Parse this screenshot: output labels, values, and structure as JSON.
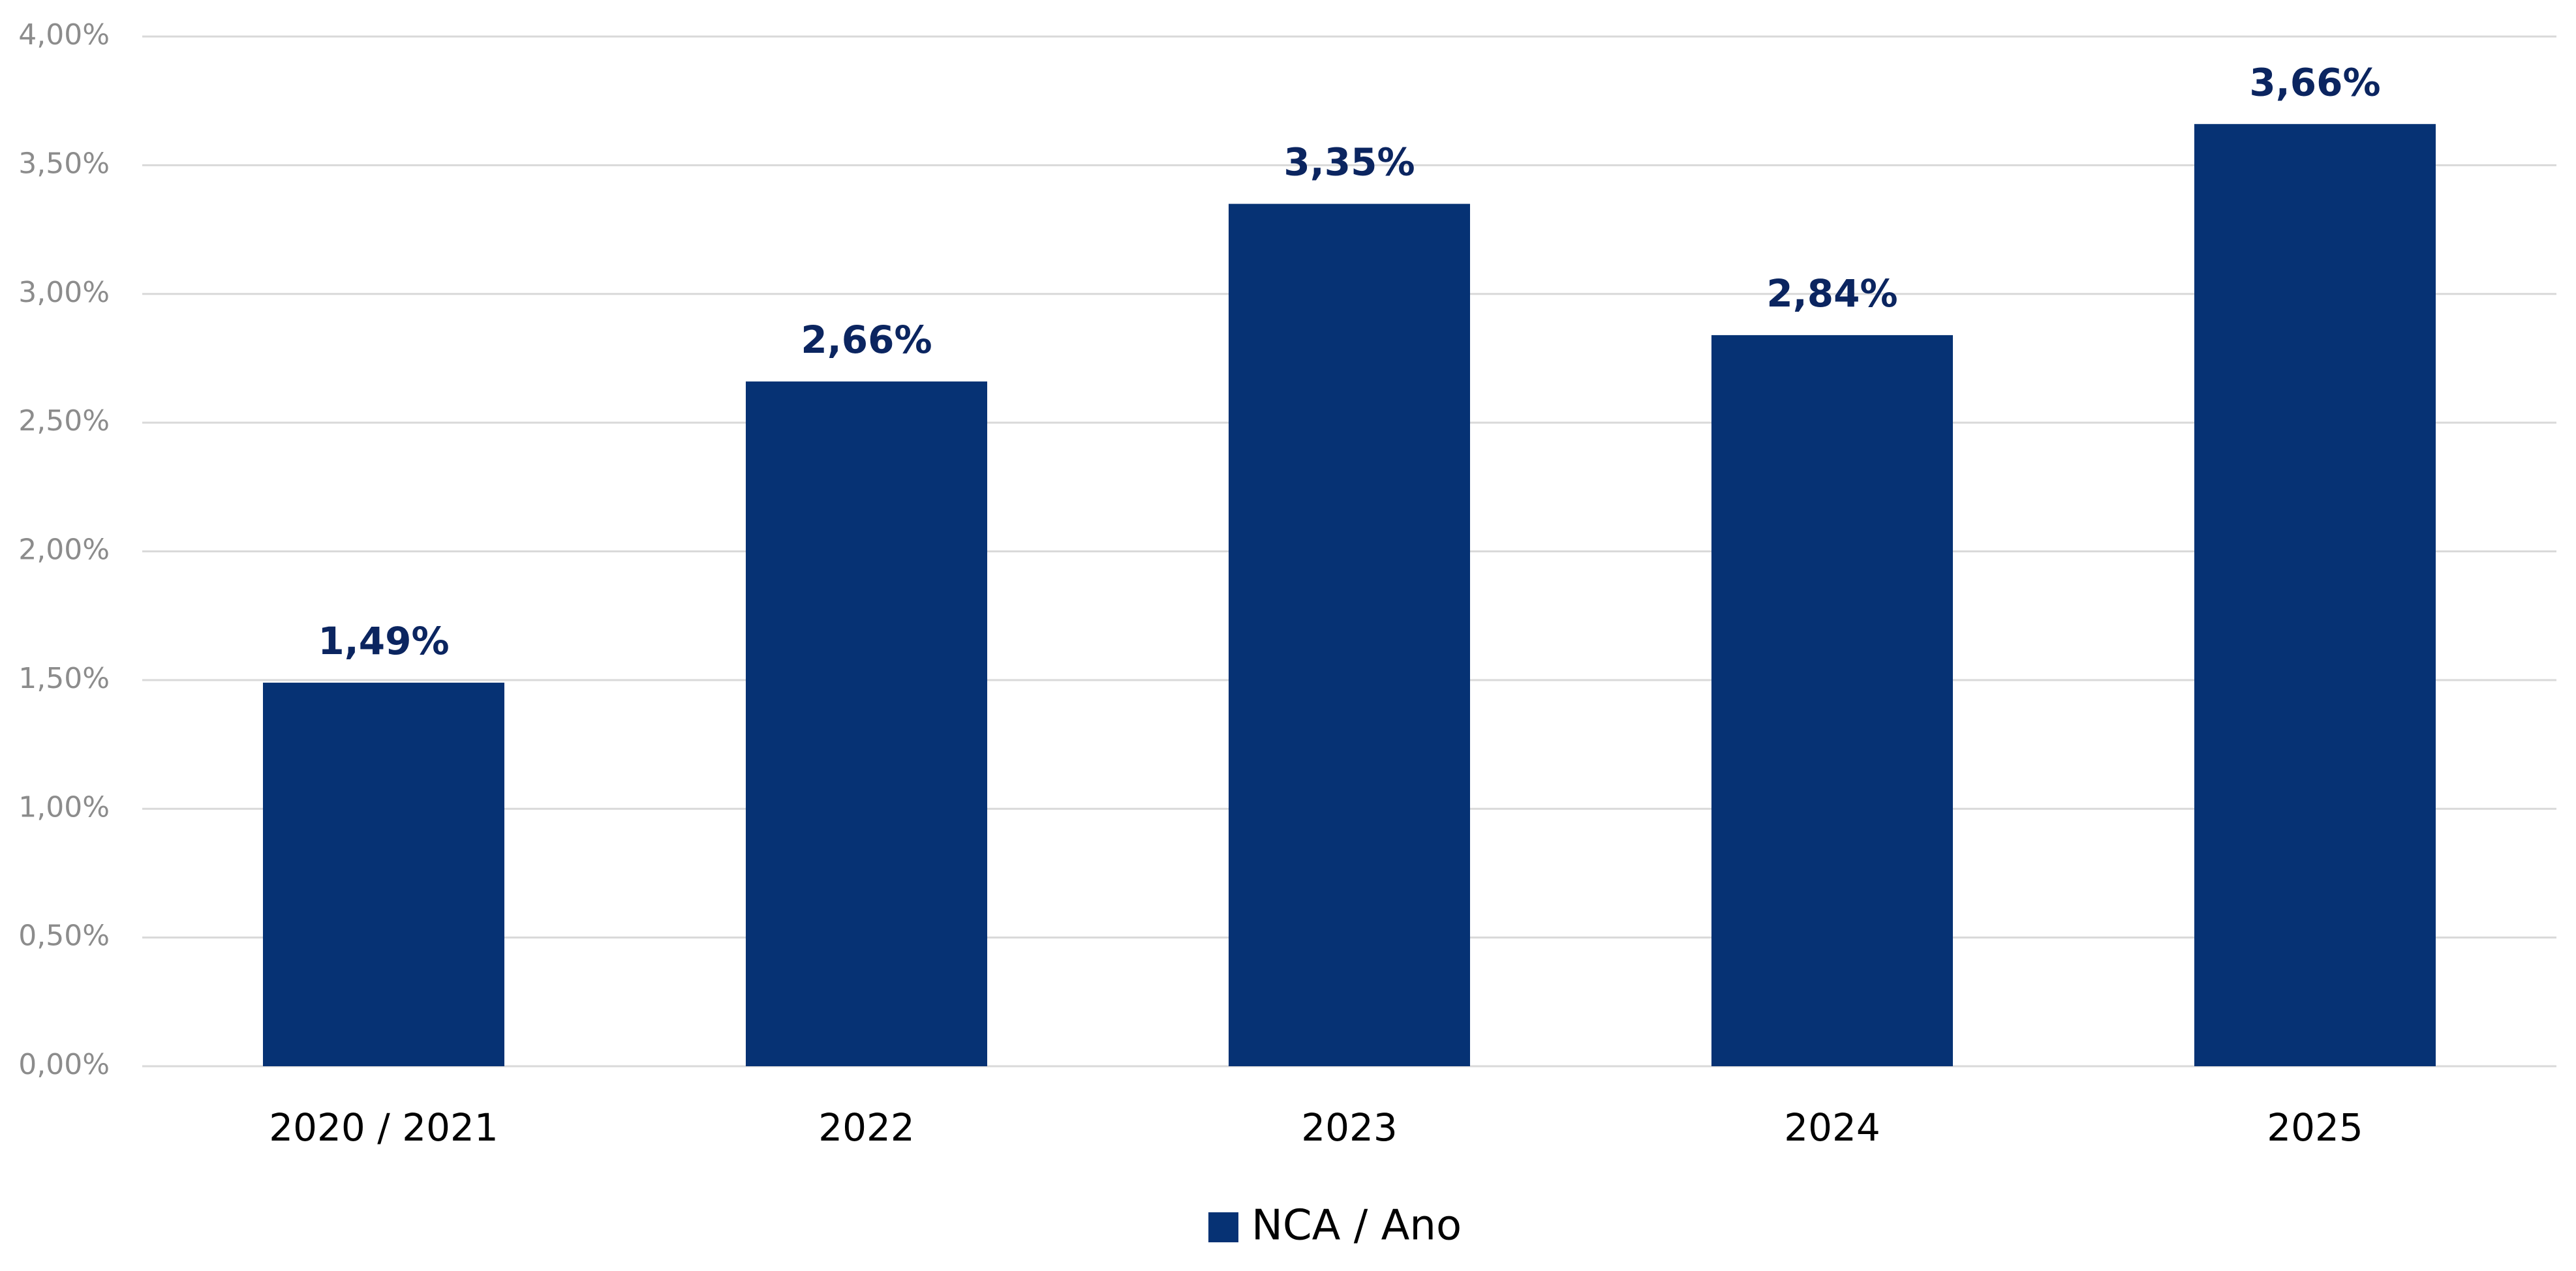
{
  "chart_data": {
    "type": "bar",
    "categories": [
      "2020 / 2021",
      "2022",
      "2023",
      "2024",
      "2025"
    ],
    "series": [
      {
        "name": "NCA / Ano",
        "color": "#063274",
        "values": [
          1.49,
          2.66,
          3.35,
          2.84,
          3.66
        ],
        "value_labels": [
          "1,49%",
          "2,66%",
          "3,35%",
          "2,84%",
          "3,66%"
        ]
      }
    ],
    "ylim": [
      0,
      4
    ],
    "yticks": [
      {
        "value": 0,
        "label": "0,00%"
      },
      {
        "value": 0.5,
        "label": "0,50%"
      },
      {
        "value": 1,
        "label": "1,00%"
      },
      {
        "value": 1.5,
        "label": "1,50%"
      },
      {
        "value": 2,
        "label": "2,00%"
      },
      {
        "value": 2.5,
        "label": "2,50%"
      },
      {
        "value": 3,
        "label": "3,00%"
      },
      {
        "value": 3.5,
        "label": "3,50%"
      },
      {
        "value": 4,
        "label": "4,00%"
      }
    ],
    "grid": true,
    "legend": "bottom"
  }
}
